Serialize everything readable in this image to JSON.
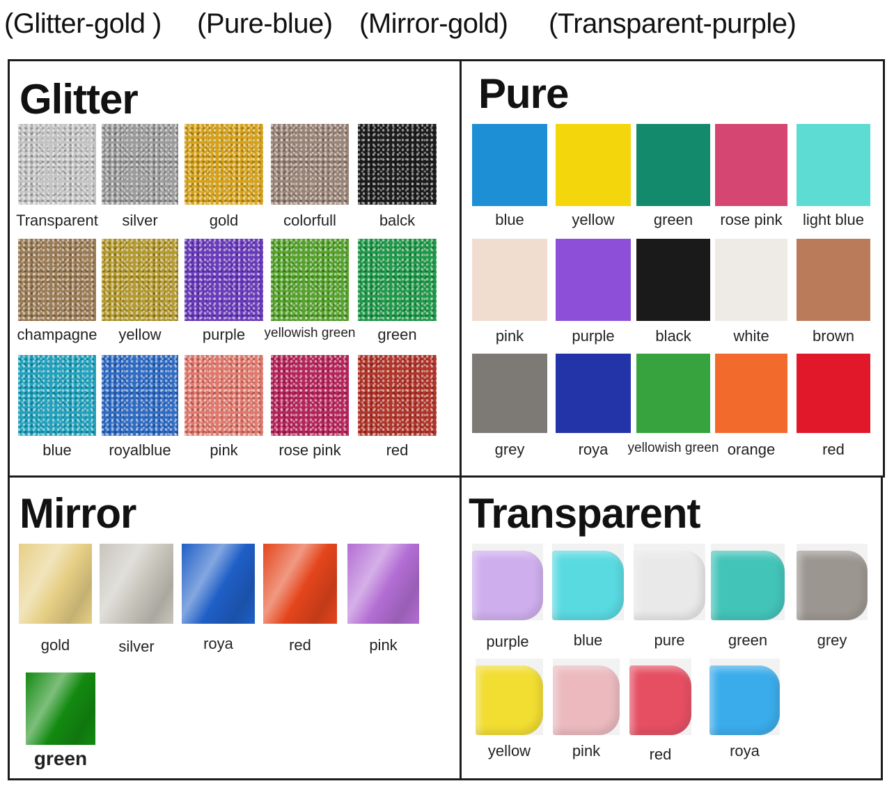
{
  "header": {
    "labels": [
      "(Glitter-gold )",
      "(Pure-blue)",
      "(Mirror-gold)",
      "(Transparent-purple)"
    ]
  },
  "glitter": {
    "title": "Glitter",
    "items": [
      {
        "label": "Transparent",
        "color": "#c4c4c4"
      },
      {
        "label": "silver",
        "color": "#9c9c9c"
      },
      {
        "label": "gold",
        "color": "#d6a21a"
      },
      {
        "label": "colorfull",
        "color": "#9a8477"
      },
      {
        "label": "balck",
        "color": "#1c1c1c"
      },
      {
        "label": "champagne",
        "color": "#9c7c55"
      },
      {
        "label": "yellow",
        "color": "#b59a2e"
      },
      {
        "label": "purple",
        "color": "#6a3bbd"
      },
      {
        "label": "yellowish green",
        "color": "#55a32b"
      },
      {
        "label": "green",
        "color": "#1f9a49"
      },
      {
        "label": "blue",
        "color": "#20a3bf"
      },
      {
        "label": "royalblue",
        "color": "#2f6cc6"
      },
      {
        "label": "pink",
        "color": "#e2786c"
      },
      {
        "label": "rose pink",
        "color": "#b8245a"
      },
      {
        "label": "red",
        "color": "#b3352a"
      }
    ]
  },
  "pure": {
    "title": "Pure",
    "items": [
      {
        "label": "blue",
        "color": "#1d8fd4"
      },
      {
        "label": "yellow",
        "color": "#f4d60c"
      },
      {
        "label": "green",
        "color": "#148a6c"
      },
      {
        "label": "rose pink",
        "color": "#d54672"
      },
      {
        "label": "light blue",
        "color": "#5cdcd3"
      },
      {
        "label": "pink",
        "color": "#f0ddd0"
      },
      {
        "label": "purple",
        "color": "#8d4ed8"
      },
      {
        "label": "black",
        "color": "#1a1a1a"
      },
      {
        "label": "white",
        "color": "#eeebe6"
      },
      {
        "label": "brown",
        "color": "#b97b59"
      },
      {
        "label": "grey",
        "color": "#7d7a76"
      },
      {
        "label": "roya",
        "color": "#2234a8"
      },
      {
        "label": "yellowish green",
        "color": "#36a33e"
      },
      {
        "label": "orange",
        "color": "#f36b2c"
      },
      {
        "label": "red",
        "color": "#e0182a"
      }
    ]
  },
  "mirror": {
    "title": "Mirror",
    "items": [
      {
        "label": "gold",
        "color": "#e6cf85"
      },
      {
        "label": "silver",
        "color": "#c8c5bc"
      },
      {
        "label": "roya",
        "color": "#1f5fc6"
      },
      {
        "label": "red",
        "color": "#e4451c"
      },
      {
        "label": "pink",
        "color": "#b36ed4"
      },
      {
        "label": "green",
        "color": "#138a11"
      }
    ]
  },
  "transparent": {
    "title": "Transparent",
    "items": [
      {
        "label": "purple",
        "color": "#c9a3ee"
      },
      {
        "label": "blue",
        "color": "#3fd6df"
      },
      {
        "label": "pure",
        "color": "#e8e8e8"
      },
      {
        "label": "green",
        "color": "#24bdb0"
      },
      {
        "label": "grey",
        "color": "#8e8780"
      },
      {
        "label": "yellow",
        "color": "#f2da10"
      },
      {
        "label": "pink",
        "color": "#eab0b6"
      },
      {
        "label": "red",
        "color": "#e4324a"
      },
      {
        "label": "roya",
        "color": "#1aa0ea"
      }
    ]
  }
}
